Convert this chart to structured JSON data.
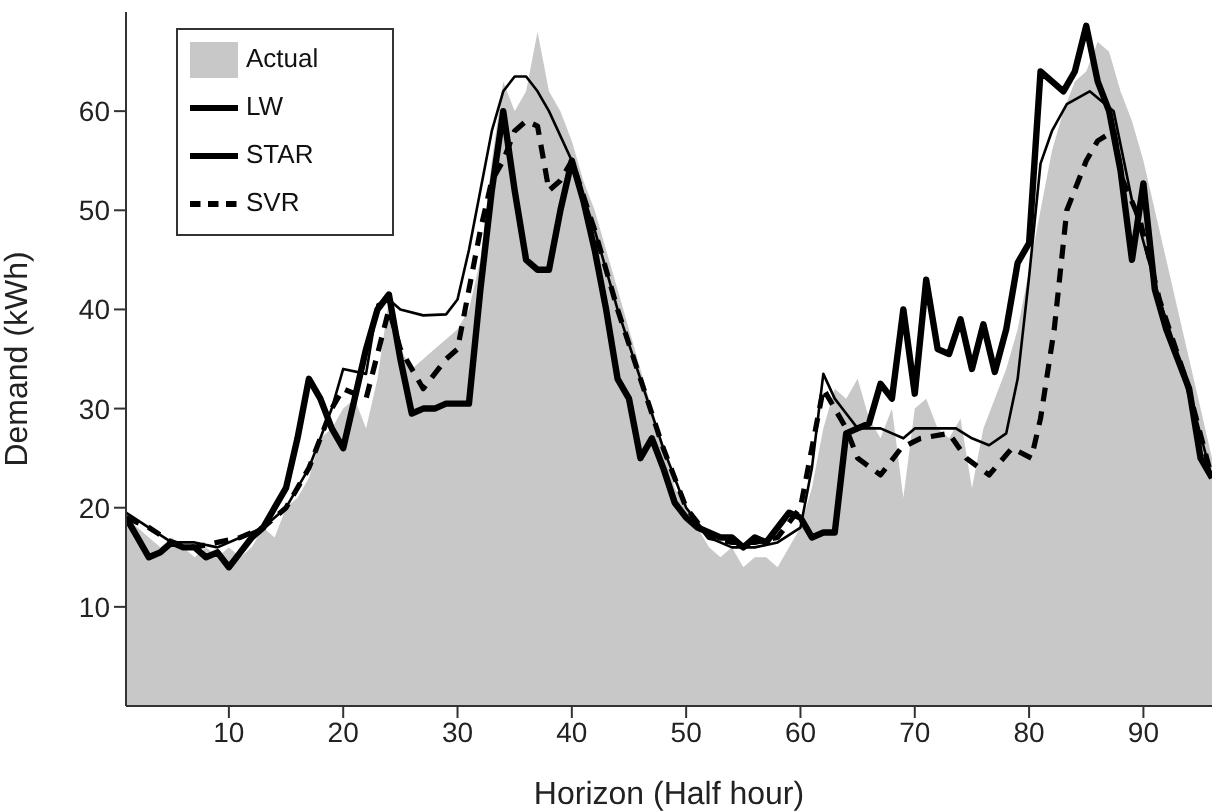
{
  "chart_data": {
    "type": "line",
    "xlabel": "Horizon (Half hour)",
    "ylabel": "Demand (kWh)",
    "xlim": [
      1,
      96
    ],
    "xticks": [
      10,
      20,
      30,
      40,
      50,
      60,
      70,
      80,
      90
    ],
    "ylim": [
      0,
      70
    ],
    "yticks": [
      10,
      20,
      30,
      40,
      50,
      60
    ],
    "grid": false,
    "legend": "top left",
    "marker": "none",
    "series": [
      {
        "name": "Actual",
        "type": "area",
        "color": "#c8c8c8",
        "x": [
          1,
          2,
          3,
          4,
          5,
          6,
          7,
          8,
          9,
          10,
          11,
          12,
          13,
          14,
          15,
          16,
          17,
          18,
          19,
          20,
          21,
          22,
          23,
          24,
          25,
          26,
          27,
          28,
          29,
          30,
          31,
          32,
          33,
          34,
          35,
          36,
          37,
          38,
          39,
          40,
          41,
          42,
          43,
          44,
          45,
          46,
          47,
          48,
          49,
          50,
          51,
          52,
          53,
          54,
          55,
          56,
          57,
          58,
          59,
          60,
          61,
          62,
          63,
          64,
          65,
          66,
          67,
          68,
          69,
          70,
          71,
          72,
          73,
          74,
          75,
          76,
          77,
          78,
          79,
          80,
          81,
          82,
          83,
          84,
          85,
          86,
          87,
          88,
          89,
          90,
          91,
          92,
          93,
          94,
          95,
          96
        ],
        "values": [
          19,
          18,
          17,
          16,
          17,
          16,
          15,
          16,
          15,
          16,
          15,
          16,
          18,
          17,
          20,
          21,
          23,
          27,
          28,
          30,
          31,
          28,
          33,
          41,
          36,
          34,
          35,
          36,
          37,
          38,
          40,
          45,
          55,
          63,
          60,
          62,
          68,
          62,
          60,
          57,
          53,
          50,
          46,
          42,
          38,
          34,
          30,
          26,
          22,
          20,
          18,
          16,
          15,
          16,
          14,
          15,
          15,
          14,
          16,
          18,
          22,
          28,
          32,
          31,
          33,
          29,
          27,
          30,
          21,
          30,
          31,
          28,
          27,
          29,
          22,
          28,
          31,
          34,
          38,
          44,
          50,
          56,
          60,
          63,
          64,
          67,
          66,
          62,
          59,
          55,
          50,
          45,
          40,
          35,
          30,
          25
        ]
      },
      {
        "name": "LW",
        "color": "#000000",
        "line_style": "solid",
        "x": [
          1,
          2,
          3,
          4,
          5,
          6,
          7,
          8,
          9,
          10,
          11,
          12,
          13,
          14,
          15,
          16,
          17,
          18,
          19,
          20,
          21,
          22,
          23,
          24,
          25,
          26,
          27,
          28,
          29,
          30,
          31,
          32,
          33,
          34,
          35,
          36,
          37,
          38,
          39,
          40,
          41,
          42,
          43,
          44,
          45,
          46,
          47,
          48,
          49,
          50,
          51,
          52,
          53,
          54,
          55,
          56,
          57,
          58,
          59,
          60,
          61,
          62,
          63,
          64,
          65,
          66,
          67,
          68,
          69,
          70,
          71,
          72,
          73,
          74,
          75,
          76,
          77,
          78,
          79,
          80,
          81,
          82,
          83,
          84,
          85,
          86,
          87,
          88,
          89,
          90,
          91,
          92,
          93,
          94,
          95,
          96
        ],
        "values": [
          19,
          17,
          15,
          15.5,
          16.5,
          16,
          16,
          15,
          15.5,
          14,
          15.5,
          17,
          18,
          20,
          22,
          27,
          33,
          31,
          28,
          26,
          31,
          36,
          40,
          41.5,
          35,
          29.5,
          30,
          30,
          30.5,
          30.5,
          30.5,
          42,
          52,
          60,
          52,
          45,
          44,
          44,
          50,
          55,
          51,
          46,
          40,
          33,
          31,
          25,
          27,
          24,
          20.5,
          19,
          18,
          17.5,
          17,
          17,
          16,
          17,
          16.5,
          18,
          19.5,
          19,
          17,
          17.5,
          17.5,
          27.5,
          28,
          28.5,
          32.5,
          31,
          40,
          31.5,
          43,
          36,
          35.5,
          39,
          34,
          38.5,
          33.7,
          38,
          44.7,
          46.7,
          64,
          63,
          62,
          64,
          68.6,
          63,
          60,
          54,
          45,
          52.7,
          42,
          38,
          35,
          32,
          25,
          23
        ]
      },
      {
        "name": "STAR",
        "color": "#000000",
        "line_style": "solid",
        "x": [
          1,
          3,
          5,
          7,
          9,
          11,
          13,
          15,
          17,
          18,
          19,
          20,
          22,
          23,
          24,
          25,
          27,
          29,
          30,
          31,
          32,
          33,
          34,
          35,
          36,
          37,
          38,
          40,
          42,
          44,
          46,
          48,
          50,
          52,
          54,
          56,
          58,
          60,
          61,
          62,
          63,
          64,
          65,
          67,
          69,
          70,
          72,
          73.6,
          75,
          76.5,
          78,
          79,
          80,
          81,
          82,
          83.3,
          85.3,
          87.4,
          89,
          91.4,
          93.7,
          96
        ],
        "values": [
          19.5,
          18,
          16.5,
          16.5,
          16,
          17,
          18,
          20,
          24,
          27,
          30,
          34,
          33.5,
          40.5,
          41,
          40,
          39.4,
          39.5,
          41,
          46,
          52,
          58,
          62,
          63.5,
          63.5,
          62,
          60,
          55,
          48,
          40,
          33,
          26,
          20,
          17,
          16,
          16,
          16.5,
          18,
          24,
          33.5,
          31,
          29.5,
          28,
          28,
          27,
          28,
          28,
          28,
          27,
          26.3,
          27.5,
          33,
          43.3,
          54.7,
          58,
          60.7,
          62,
          60,
          51,
          41,
          33,
          23
        ]
      },
      {
        "name": "SVR",
        "color": "#000000",
        "line_style": "dashed",
        "x": [
          1,
          3,
          5,
          7,
          9,
          11,
          13,
          15,
          17,
          19,
          20,
          22,
          24,
          25,
          27,
          29,
          30,
          31,
          32,
          33,
          34,
          35,
          36,
          37,
          38,
          39,
          40,
          42,
          44,
          46,
          48,
          50,
          52,
          54,
          56,
          58,
          60,
          61,
          62,
          63,
          64,
          65,
          67,
          68.8,
          70.5,
          73,
          74.5,
          76.5,
          78.5,
          80.2,
          81,
          82.2,
          83.3,
          85,
          86,
          87.4,
          88.2,
          89.7,
          91.4,
          93.7,
          96
        ],
        "values": [
          19,
          18,
          16.5,
          16,
          16.5,
          17,
          18,
          20,
          24,
          30,
          32,
          31,
          40,
          36,
          32,
          35,
          36,
          42,
          48,
          53,
          55,
          58,
          59,
          58.5,
          52,
          53,
          55,
          48,
          40,
          33,
          26,
          20,
          17,
          16.5,
          16.5,
          17,
          20,
          26,
          32,
          30,
          28,
          25,
          23.3,
          26,
          27,
          27.5,
          25,
          23.3,
          26,
          25,
          29,
          38,
          50,
          55,
          57,
          58,
          53,
          49,
          41,
          33,
          23
        ]
      }
    ]
  }
}
